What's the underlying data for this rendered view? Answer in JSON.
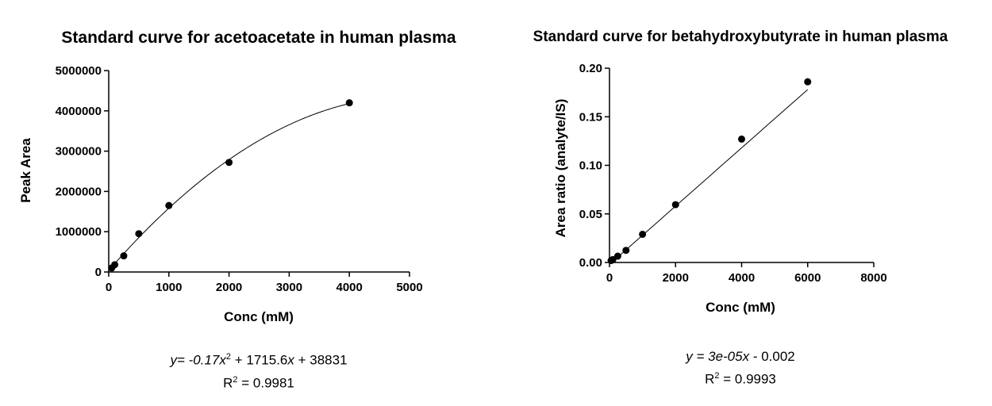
{
  "chart_data": [
    {
      "type": "scatter",
      "title": "Standard curve for acetoacetate in human plasma",
      "xlabel": "Conc (mM)",
      "ylabel": "Peak Area",
      "xlim": [
        0,
        5000
      ],
      "ylim": [
        0,
        5000000
      ],
      "xticks": [
        "0",
        "1000",
        "2000",
        "3000",
        "4000",
        "5000"
      ],
      "yticks": [
        "0",
        "1000000",
        "2000000",
        "3000000",
        "4000000",
        "5000000"
      ],
      "points": [
        {
          "x": 50,
          "y": 100000
        },
        {
          "x": 100,
          "y": 180000
        },
        {
          "x": 250,
          "y": 400000
        },
        {
          "x": 500,
          "y": 950000
        },
        {
          "x": 1000,
          "y": 1650000
        },
        {
          "x": 2000,
          "y": 2720000
        },
        {
          "x": 4000,
          "y": 4200000
        }
      ],
      "fit": {
        "kind": "quadratic",
        "a": -0.17,
        "b": 1715.6,
        "c": 38831,
        "x_range": [
          0,
          4000
        ]
      },
      "equation": {
        "prefix": "y= ",
        "term1": "-0.17x",
        "sup1": "2",
        "mid1": " + 1715.6",
        "term2": "x",
        "tail": " + 38831",
        "r2_label": "R",
        "r2_sup": "2",
        "r2_value": " = 0.9981"
      },
      "grid": false,
      "legend": "none"
    },
    {
      "type": "scatter",
      "title": "Standard curve for betahydroxybutyrate in human plasma",
      "xlabel": "Conc (mM)",
      "ylabel": "Area ratio (analyte/IS)",
      "xlim": [
        0,
        8000
      ],
      "ylim": [
        0,
        0.2
      ],
      "xticks": [
        "0",
        "2000",
        "4000",
        "6000",
        "8000"
      ],
      "yticks": [
        "0.00",
        "0.05",
        "0.10",
        "0.15",
        "0.20"
      ],
      "points": [
        {
          "x": 50,
          "y": 0.002
        },
        {
          "x": 100,
          "y": 0.003
        },
        {
          "x": 250,
          "y": 0.0065
        },
        {
          "x": 500,
          "y": 0.0125
        },
        {
          "x": 1000,
          "y": 0.029
        },
        {
          "x": 2000,
          "y": 0.0595
        },
        {
          "x": 4000,
          "y": 0.127
        },
        {
          "x": 6000,
          "y": 0.186
        }
      ],
      "fit": {
        "kind": "linear",
        "m": 3e-05,
        "b": -0.002,
        "x_range": [
          0,
          6000
        ]
      },
      "equation": {
        "prefix": "y = ",
        "term1": "3e-05x",
        "tail": " - 0.002",
        "r2_label": "R",
        "r2_sup": "2",
        "r2_value": " = 0.9993"
      },
      "grid": false,
      "legend": "none"
    }
  ]
}
